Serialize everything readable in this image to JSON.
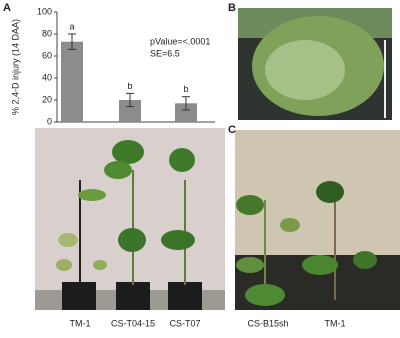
{
  "panels": [
    "A",
    "B",
    "C"
  ],
  "chart_data": {
    "type": "bar",
    "y_label": "% 2,4-D injury (14 DAA)",
    "categories": [
      "TM-1",
      "CS-T04-15",
      "CS-T07"
    ],
    "values": [
      73,
      20,
      17
    ],
    "errors": [
      7,
      6,
      6
    ],
    "letters": [
      "a",
      "b",
      "b"
    ],
    "annotations": [
      "pValue=<.0001",
      "SE=6.5"
    ],
    "color": "#8c8c8c",
    "ylim": [
      0,
      100
    ],
    "yticks": [
      0,
      20,
      40,
      60,
      80,
      100
    ]
  },
  "photo_c_labels": [
    "CS-B15sh",
    "TM-1"
  ]
}
